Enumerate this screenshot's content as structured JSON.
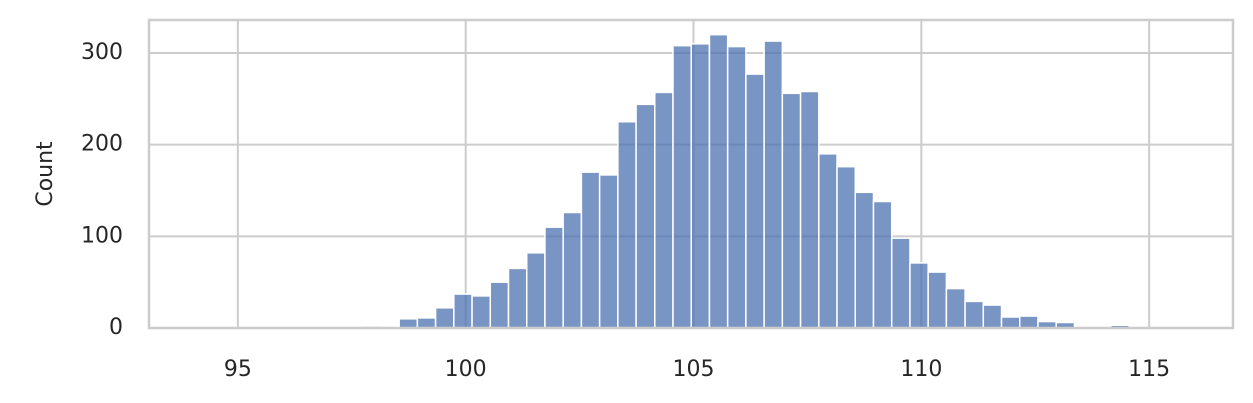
{
  "chart_data": {
    "type": "histogram",
    "ylabel": "Count",
    "bins": [
      94.13,
      94.53,
      94.93,
      95.33,
      95.73,
      96.13,
      96.53,
      96.93,
      97.33,
      97.74,
      98.14,
      98.54,
      98.94,
      99.34,
      99.74,
      100.14,
      100.54,
      100.94,
      101.34,
      101.74,
      102.14,
      102.54,
      102.94,
      103.34,
      103.74,
      104.15,
      104.55,
      104.95,
      105.35,
      105.75,
      106.15,
      106.55,
      106.95,
      107.35,
      107.75,
      108.15,
      108.55,
      108.95,
      109.35,
      109.75,
      110.15,
      110.55,
      110.96,
      111.36,
      111.76,
      112.16,
      112.56,
      112.96,
      113.36,
      113.76,
      114.16,
      114.56,
      114.96,
      115.36,
      115.76
    ],
    "values": [
      1,
      0,
      0,
      0,
      0,
      0,
      1,
      0,
      0,
      2,
      0,
      10,
      11,
      22,
      37,
      35,
      50,
      65,
      82,
      110,
      126,
      170,
      167,
      225,
      244,
      257,
      308,
      310,
      320,
      307,
      277,
      313,
      256,
      258,
      190,
      176,
      148,
      138,
      98,
      71,
      61,
      43,
      29,
      25,
      12,
      13,
      7,
      6,
      0,
      0,
      3,
      0,
      0,
      1
    ],
    "color": "#4c72b0",
    "opacity": 0.75,
    "xlim": [
      93.05,
      116.84
    ],
    "ylim": [
      0,
      336
    ],
    "xticks": [
      95,
      100,
      105,
      110,
      115
    ],
    "yticks": [
      0,
      100,
      200,
      300
    ],
    "grid": true
  }
}
